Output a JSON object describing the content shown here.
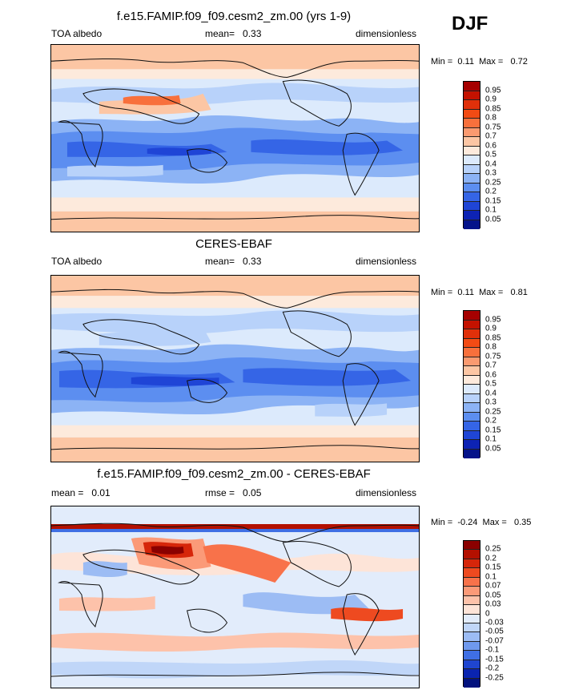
{
  "season": "DJF",
  "panels": [
    {
      "title": "f.e15.FAMIP.f09_f09.cesm2_zm.00 (yrs 1-9)",
      "left_label": "TOA albedo",
      "mid_label": "mean=",
      "mid_value": "0.33",
      "right_label": "dimensionless",
      "min_label": "Min =",
      "min_value": "0.11",
      "max_label": "Max =",
      "max_value": "0.72",
      "levels": [
        "0.95",
        "0.9",
        "0.85",
        "0.8",
        "0.75",
        "0.7",
        "0.6",
        "0.5",
        "0.4",
        "0.3",
        "0.25",
        "0.2",
        "0.15",
        "0.1",
        "0.05"
      ],
      "colors": [
        "#a50000",
        "#c41200",
        "#e0300a",
        "#f24b14",
        "#f8703c",
        "#fa9a70",
        "#fcc6a4",
        "#fdeadc",
        "#dceafc",
        "#b8d2fa",
        "#8cb3f5",
        "#5c8ef0",
        "#3565e6",
        "#1f45d6",
        "#0d23b4",
        "#05138a"
      ]
    },
    {
      "title": "CERES-EBAF",
      "left_label": "TOA albedo",
      "mid_label": "mean=",
      "mid_value": "0.33",
      "right_label": "dimensionless",
      "min_label": "Min =",
      "min_value": "0.11",
      "max_label": "Max =",
      "max_value": "0.81",
      "levels": [
        "0.95",
        "0.9",
        "0.85",
        "0.8",
        "0.75",
        "0.7",
        "0.6",
        "0.5",
        "0.4",
        "0.3",
        "0.25",
        "0.2",
        "0.15",
        "0.1",
        "0.05"
      ],
      "colors": [
        "#a50000",
        "#c41200",
        "#e0300a",
        "#f24b14",
        "#f8703c",
        "#fa9a70",
        "#fcc6a4",
        "#fdeadc",
        "#dceafc",
        "#b8d2fa",
        "#8cb3f5",
        "#5c8ef0",
        "#3565e6",
        "#1f45d6",
        "#0d23b4",
        "#05138a"
      ]
    },
    {
      "title": "f.e15.FAMIP.f09_f09.cesm2_zm.00 - CERES-EBAF",
      "left_label": "mean =",
      "left_value": "0.01",
      "mid_label": "rmse =",
      "mid_value": "0.05",
      "right_label": "dimensionless",
      "min_label": "Min =",
      "min_value": "-0.24",
      "max_label": "Max =",
      "max_value": "0.35",
      "levels": [
        "0.25",
        "0.2",
        "0.15",
        "0.1",
        "0.07",
        "0.05",
        "0.03",
        "0",
        "-0.03",
        "-0.05",
        "-0.07",
        "-0.1",
        "-0.15",
        "-0.2",
        "-0.25"
      ],
      "colors": [
        "#8a0000",
        "#b31000",
        "#d6260a",
        "#ee4a20",
        "#f8724a",
        "#fb9a78",
        "#fdc2aa",
        "#fde4d8",
        "#e2ecfb",
        "#c0d6f8",
        "#9cbcf4",
        "#6f99ee",
        "#3f6fe4",
        "#1f45d0",
        "#0a24b0",
        "#03127e"
      ]
    }
  ]
}
